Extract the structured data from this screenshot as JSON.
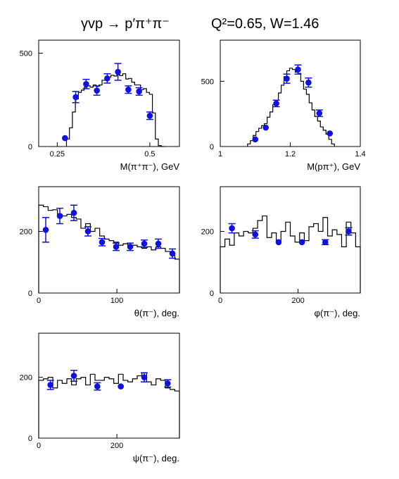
{
  "title": {
    "reaction": "γvp → p′π⁺π⁻",
    "kinematics": "Q²=0.65, W=1.46"
  },
  "colors": {
    "data_points": "#1010e0",
    "model_histogram": "#000000",
    "axes": "#000000"
  },
  "chart_data": [
    {
      "id": "m_pipi",
      "type": "line",
      "xlabel": "M(π⁺π⁻), GeV",
      "xlim": [
        0.2,
        0.58
      ],
      "ylim": [
        0,
        570
      ],
      "xticks": [
        {
          "v": 0.25,
          "label": "0.25"
        },
        {
          "v": 0.5,
          "label": "0.5"
        }
      ],
      "yticks": [
        {
          "v": 0,
          "label": "0"
        },
        {
          "v": 500,
          "label": "500"
        }
      ],
      "histogram": {
        "edges": [
          0.275,
          0.283,
          0.291,
          0.299,
          0.307,
          0.315,
          0.323,
          0.331,
          0.339,
          0.347,
          0.355,
          0.363,
          0.371,
          0.379,
          0.387,
          0.395,
          0.403,
          0.411,
          0.419,
          0.427,
          0.435,
          0.443,
          0.451,
          0.459,
          0.467,
          0.475,
          0.483,
          0.491,
          0.499,
          0.507,
          0.515,
          0.523,
          0.531,
          0.539
        ],
        "values": [
          40,
          100,
          185,
          255,
          290,
          302,
          318,
          325,
          318,
          330,
          322,
          330,
          355,
          355,
          372,
          382,
          378,
          385,
          380,
          390,
          362,
          365,
          345,
          330,
          330,
          305,
          310,
          290,
          280,
          180,
          40,
          5,
          0
        ]
      },
      "points": [
        {
          "x": 0.271,
          "y": 45,
          "err": 0
        },
        {
          "x": 0.3,
          "y": 265,
          "err": 30
        },
        {
          "x": 0.328,
          "y": 335,
          "err": 25
        },
        {
          "x": 0.357,
          "y": 300,
          "err": 25
        },
        {
          "x": 0.385,
          "y": 365,
          "err": 25
        },
        {
          "x": 0.414,
          "y": 400,
          "err": 45
        },
        {
          "x": 0.442,
          "y": 305,
          "err": 20
        },
        {
          "x": 0.471,
          "y": 295,
          "err": 20
        },
        {
          "x": 0.5,
          "y": 165,
          "err": 20
        }
      ]
    },
    {
      "id": "m_ppip",
      "type": "line",
      "xlabel": "M(pπ⁺), GeV",
      "xlim": [
        1.0,
        1.4
      ],
      "ylim": [
        0,
        815
      ],
      "xticks": [
        {
          "v": 1.0,
          "label": "1"
        },
        {
          "v": 1.2,
          "label": "1.2"
        },
        {
          "v": 1.4,
          "label": "1.4"
        }
      ],
      "yticks": [
        {
          "v": 0,
          "label": "0"
        },
        {
          "v": 500,
          "label": "500"
        }
      ],
      "histogram": {
        "edges": [
          1.078,
          1.086,
          1.094,
          1.102,
          1.11,
          1.118,
          1.126,
          1.134,
          1.142,
          1.15,
          1.158,
          1.166,
          1.174,
          1.182,
          1.19,
          1.198,
          1.206,
          1.214,
          1.222,
          1.23,
          1.238,
          1.246,
          1.254,
          1.262,
          1.27,
          1.278,
          1.286,
          1.294,
          1.302,
          1.31,
          1.318,
          1.326
        ],
        "values": [
          20,
          45,
          85,
          115,
          140,
          160,
          175,
          225,
          265,
          320,
          355,
          410,
          470,
          535,
          580,
          600,
          590,
          570,
          560,
          500,
          440,
          400,
          335,
          280,
          230,
          195,
          150,
          125,
          95,
          55,
          20
        ]
      },
      "points": [
        {
          "x": 1.1,
          "y": 55,
          "err": 0
        },
        {
          "x": 1.13,
          "y": 145,
          "err": 0
        },
        {
          "x": 1.16,
          "y": 330,
          "err": 25
        },
        {
          "x": 1.19,
          "y": 520,
          "err": 35
        },
        {
          "x": 1.222,
          "y": 590,
          "err": 35
        },
        {
          "x": 1.252,
          "y": 490,
          "err": 35
        },
        {
          "x": 1.283,
          "y": 255,
          "err": 25
        },
        {
          "x": 1.313,
          "y": 100,
          "err": 0
        }
      ]
    },
    {
      "id": "theta",
      "type": "line",
      "xlabel": "θ(π⁻), deg.",
      "xlim": [
        0,
        180
      ],
      "ylim": [
        0,
        345
      ],
      "xticks": [
        {
          "v": 0,
          "label": "0"
        },
        {
          "v": 100,
          "label": "100"
        }
      ],
      "yticks": [
        {
          "v": 0,
          "label": "0"
        },
        {
          "v": 200,
          "label": "200"
        }
      ],
      "histogram": {
        "edges": [
          0,
          6,
          12,
          18,
          24,
          30,
          36,
          42,
          48,
          54,
          60,
          66,
          72,
          78,
          84,
          90,
          96,
          102,
          108,
          114,
          120,
          126,
          132,
          138,
          144,
          150,
          156,
          162,
          168,
          174,
          180
        ],
        "values": [
          285,
          280,
          268,
          270,
          255,
          250,
          255,
          245,
          240,
          210,
          225,
          200,
          210,
          185,
          175,
          170,
          165,
          155,
          160,
          150,
          155,
          150,
          145,
          150,
          140,
          150,
          145,
          135,
          125,
          110
        ]
      },
      "points": [
        {
          "x": 9,
          "y": 205,
          "err": 40
        },
        {
          "x": 27,
          "y": 250,
          "err": 25
        },
        {
          "x": 45,
          "y": 260,
          "err": 25
        },
        {
          "x": 63,
          "y": 200,
          "err": 15
        },
        {
          "x": 81,
          "y": 165,
          "err": 12
        },
        {
          "x": 99,
          "y": 150,
          "err": 12
        },
        {
          "x": 117,
          "y": 150,
          "err": 12
        },
        {
          "x": 135,
          "y": 160,
          "err": 12
        },
        {
          "x": 153,
          "y": 160,
          "err": 15
        },
        {
          "x": 171,
          "y": 128,
          "err": 15
        }
      ]
    },
    {
      "id": "phi",
      "type": "line",
      "xlabel": "φ(π⁻), deg.",
      "xlim": [
        0,
        360
      ],
      "ylim": [
        0,
        345
      ],
      "xticks": [
        {
          "v": 0,
          "label": "0"
        },
        {
          "v": 200,
          "label": "200"
        }
      ],
      "yticks": [
        {
          "v": 0,
          "label": "0"
        },
        {
          "v": 200,
          "label": "200"
        }
      ],
      "histogram": {
        "edges": [
          0,
          12,
          24,
          36,
          48,
          60,
          72,
          84,
          96,
          108,
          120,
          132,
          144,
          156,
          168,
          180,
          192,
          204,
          216,
          228,
          240,
          252,
          264,
          276,
          288,
          300,
          312,
          324,
          336,
          348,
          360
        ],
        "values": [
          150,
          175,
          155,
          195,
          185,
          200,
          195,
          210,
          235,
          250,
          180,
          195,
          165,
          200,
          230,
          185,
          165,
          195,
          170,
          215,
          225,
          200,
          245,
          185,
          205,
          190,
          150,
          230,
          195,
          150
        ]
      },
      "points": [
        {
          "x": 30,
          "y": 210,
          "err": 15
        },
        {
          "x": 90,
          "y": 190,
          "err": 12
        },
        {
          "x": 150,
          "y": 165,
          "err": 0
        },
        {
          "x": 210,
          "y": 165,
          "err": 0
        },
        {
          "x": 270,
          "y": 165,
          "err": 8
        },
        {
          "x": 330,
          "y": 200,
          "err": 12
        }
      ]
    },
    {
      "id": "psi",
      "type": "line",
      "xlabel": "ψ(π⁻), deg.",
      "xlim": [
        0,
        360
      ],
      "ylim": [
        0,
        345
      ],
      "xticks": [
        {
          "v": 0,
          "label": "0"
        },
        {
          "v": 200,
          "label": "200"
        }
      ],
      "yticks": [
        {
          "v": 0,
          "label": "0"
        },
        {
          "v": 200,
          "label": "200"
        }
      ],
      "histogram": {
        "edges": [
          0,
          12,
          24,
          36,
          48,
          60,
          72,
          84,
          96,
          108,
          120,
          132,
          144,
          156,
          168,
          180,
          192,
          204,
          216,
          228,
          240,
          252,
          264,
          276,
          288,
          300,
          312,
          324,
          336,
          348,
          360
        ],
        "values": [
          190,
          195,
          200,
          165,
          190,
          180,
          195,
          175,
          195,
          200,
          175,
          210,
          190,
          190,
          200,
          195,
          180,
          210,
          190,
          185,
          195,
          205,
          215,
          185,
          175,
          195,
          190,
          165,
          160,
          155
        ]
      },
      "points": [
        {
          "x": 30,
          "y": 175,
          "err": 15
        },
        {
          "x": 90,
          "y": 205,
          "err": 18
        },
        {
          "x": 150,
          "y": 170,
          "err": 12
        },
        {
          "x": 210,
          "y": 170,
          "err": 0
        },
        {
          "x": 270,
          "y": 200,
          "err": 15
        },
        {
          "x": 330,
          "y": 180,
          "err": 12
        }
      ]
    }
  ]
}
